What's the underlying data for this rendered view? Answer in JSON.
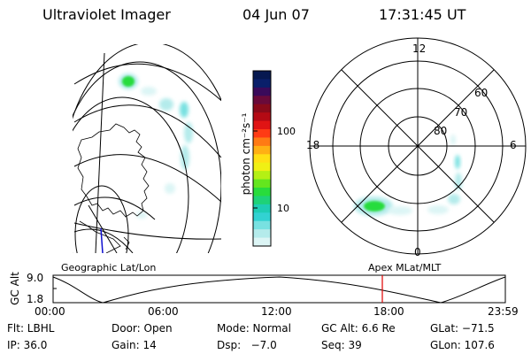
{
  "header": {
    "title": "Ultraviolet Imager",
    "date": "04 Jun 07",
    "time": "17:31:45 UT"
  },
  "colorbar": {
    "unit_label": "photon cm⁻²s⁻¹",
    "ticks": [
      "100",
      "10"
    ],
    "colors": [
      "#061850",
      "#0a1f6a",
      "#3a0a5a",
      "#6a0a3a",
      "#8a0a1a",
      "#b40a14",
      "#e01414",
      "#ff3a14",
      "#ff7a14",
      "#ffb014",
      "#ffe014",
      "#f0f014",
      "#b4f014",
      "#64e61e",
      "#28dc3c",
      "#1ed278",
      "#1ecdb4",
      "#32d2d2",
      "#78e1e1",
      "#b4ebeb",
      "#dcf5f5"
    ]
  },
  "polar_plot": {
    "mlt_labels": {
      "top": "12",
      "left": "18",
      "right": "6",
      "bottom": "0"
    },
    "lat_labels": [
      "60",
      "70",
      "80"
    ]
  },
  "timeline": {
    "left_label": "Geographic Lat/Lon",
    "right_label": "Apex MLat/MLT",
    "axis_title": "GC Alt",
    "y_ticks": [
      "9.0",
      "1.8"
    ],
    "x_ticks": [
      "00:00",
      "06:00",
      "12:00",
      "18:00",
      "23:59"
    ],
    "marker_color": "#e00000"
  },
  "info": {
    "filter": "Flt: LBHL",
    "door": "Door: Open",
    "mode": "Mode: Normal",
    "gc_alt": "GC Alt: 6.6 Re",
    "glat": "GLat: −71.5",
    "ip": "IP: 36.0",
    "gain": "Gain: 14",
    "dsp": "Dsp:   −7.0",
    "seq": "Seq: 39",
    "glon": "GLon: 107.6"
  }
}
